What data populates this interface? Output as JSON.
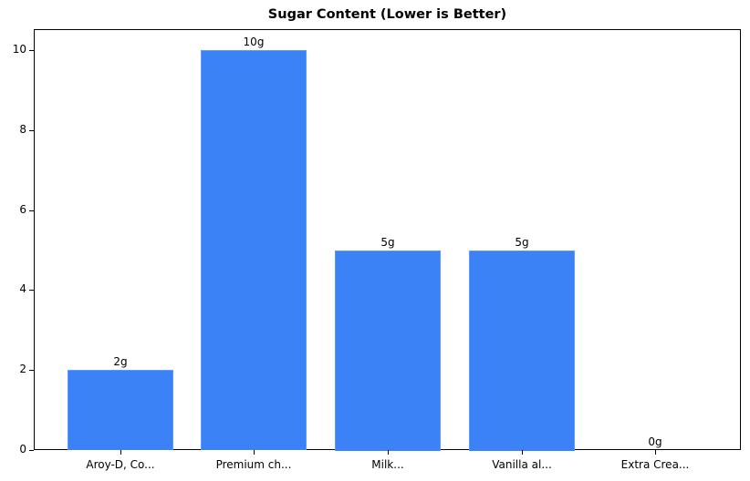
{
  "chart_data": {
    "type": "bar",
    "title": "Sugar Content (Lower is Better)",
    "xlabel": "",
    "ylabel": "",
    "categories": [
      "Aroy-D, Co...",
      "Premium ch...",
      "Milk...",
      "Vanilla al...",
      "Extra Crea..."
    ],
    "values": [
      2,
      10,
      5,
      5,
      0
    ],
    "data_labels": [
      "2g",
      "10g",
      "5g",
      "5g",
      "0g"
    ],
    "ylim": [
      0,
      10.5
    ],
    "yticks": [
      0,
      2,
      4,
      6,
      8,
      10
    ],
    "grid": false,
    "legend": null,
    "bar_color": "#3b82f6"
  }
}
